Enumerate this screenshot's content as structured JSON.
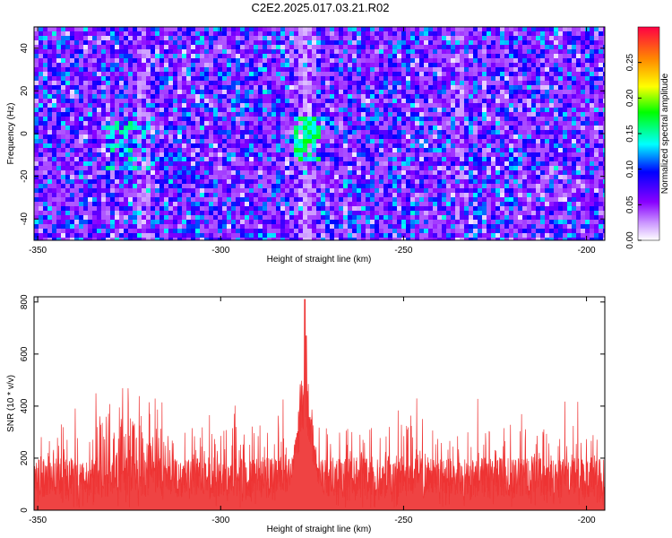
{
  "title": "C2E2.2025.017.03.21.R02",
  "chart_data": [
    {
      "type": "heatmap",
      "xlabel": "Height of straight line (km)",
      "ylabel": "Frequency (Hz)",
      "xlim": [
        -351,
        -195
      ],
      "ylim": [
        -50,
        50
      ],
      "x_ticks": [
        -350,
        -300,
        -250,
        -200
      ],
      "y_ticks": [
        -40,
        -20,
        0,
        20,
        40
      ],
      "colorbar": {
        "label": "Normalized spectral amplitude",
        "range": [
          0.0,
          0.3
        ],
        "ticks": [
          "0.00",
          "0.05",
          "0.10",
          "0.15",
          "0.20",
          "0.25"
        ],
        "colors": [
          "#ffffff",
          "#8800ff",
          "#0000ff",
          "#00ffff",
          "#00ff00",
          "#ffff00",
          "#ff8800",
          "#ff0033"
        ]
      },
      "features": {
        "background_level": 0.03,
        "peak_height_km": -277,
        "peak_frequency_hz": -2,
        "peak_value": 0.13,
        "quiet_band_center_km": -277
      }
    },
    {
      "type": "line",
      "xlabel": "Height of straight line (km)",
      "ylabel": "SNR (10 * v/v)",
      "xlim": [
        -351,
        -195
      ],
      "ylim": [
        0,
        820
      ],
      "x_ticks": [
        -350,
        -300,
        -250,
        -200
      ],
      "y_ticks": [
        0,
        200,
        400,
        600,
        800
      ],
      "color": "#ee3333",
      "features": {
        "baseline_mean": 140,
        "noise_max": 430,
        "peak_height_km": -277,
        "peak_value": 810,
        "secondary_peak_value": 670
      }
    }
  ]
}
